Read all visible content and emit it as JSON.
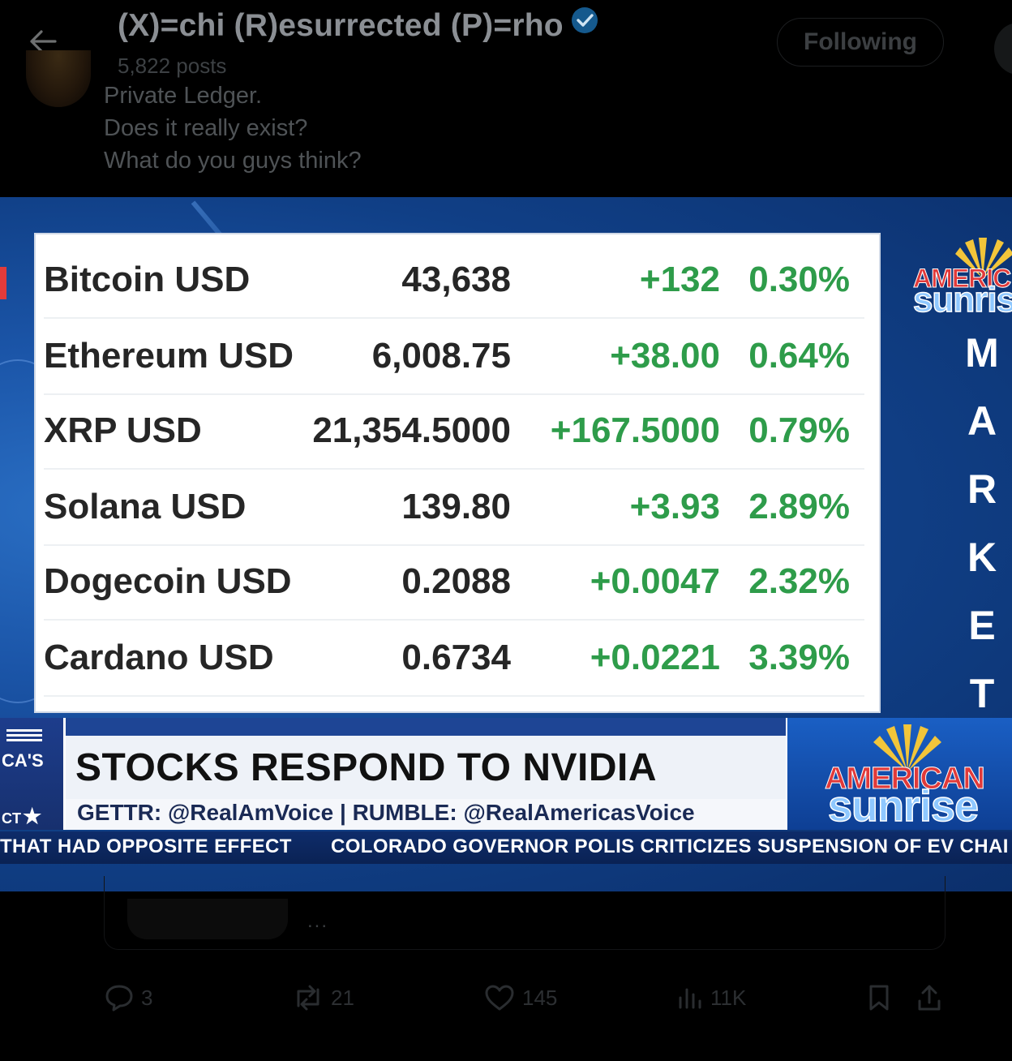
{
  "header": {
    "display_name": "(X)=chi (R)esurrected (P)=rho",
    "posts_count": "5,822 posts",
    "follow_label": "Following"
  },
  "post": {
    "lines": [
      "Private Ledger.",
      "Does it really exist?",
      "What do you guys think?"
    ]
  },
  "video": {
    "rows": [
      {
        "coin": "Bitcoin USD",
        "price": "43,638",
        "change": "+132",
        "pct": "0.30%"
      },
      {
        "coin": "Ethereum USD",
        "price": "6,008.75",
        "change": "+38.00",
        "pct": "0.64%"
      },
      {
        "coin": "XRP USD",
        "price": "21,354.5000",
        "change": "+167.5000",
        "pct": "0.79%"
      },
      {
        "coin": "Solana USD",
        "price": "139.80",
        "change": "+3.93",
        "pct": "2.89%"
      },
      {
        "coin": "Dogecoin USD",
        "price": "0.2088",
        "change": "+0.0047",
        "pct": "2.32%"
      },
      {
        "coin": "Cardano USD",
        "price": "0.6734",
        "change": "+0.0221",
        "pct": "3.39%"
      }
    ],
    "side_logo_top": "AMERIC",
    "side_logo_bottom": "sunris",
    "side_word": [
      "M",
      "A",
      "R",
      "K",
      "E",
      "T"
    ],
    "lower_left_top": "CA'S",
    "lower_left_bottom": "CT",
    "headline": "STOCKS RESPOND TO NVIDIA",
    "social": "GETTR: @RealAmVoice | RUMBLE: @RealAmericasVoice",
    "logo_top": "AMERICAN",
    "logo_bottom": "sunrise",
    "ticker_left": "THAT HAD OPPOSITE EFFECT",
    "ticker_right": "COLORADO GOVERNOR POLIS CRITICIZES SUSPENSION OF EV CHAI"
  },
  "quoted": {
    "more": "..."
  },
  "actions": {
    "replies": "3",
    "reposts": "21",
    "likes": "145",
    "views": "11K"
  },
  "colors": {
    "positive": "#2e9c4a",
    "verified": "#1d9bf0",
    "studio_blue": "#103f86"
  }
}
